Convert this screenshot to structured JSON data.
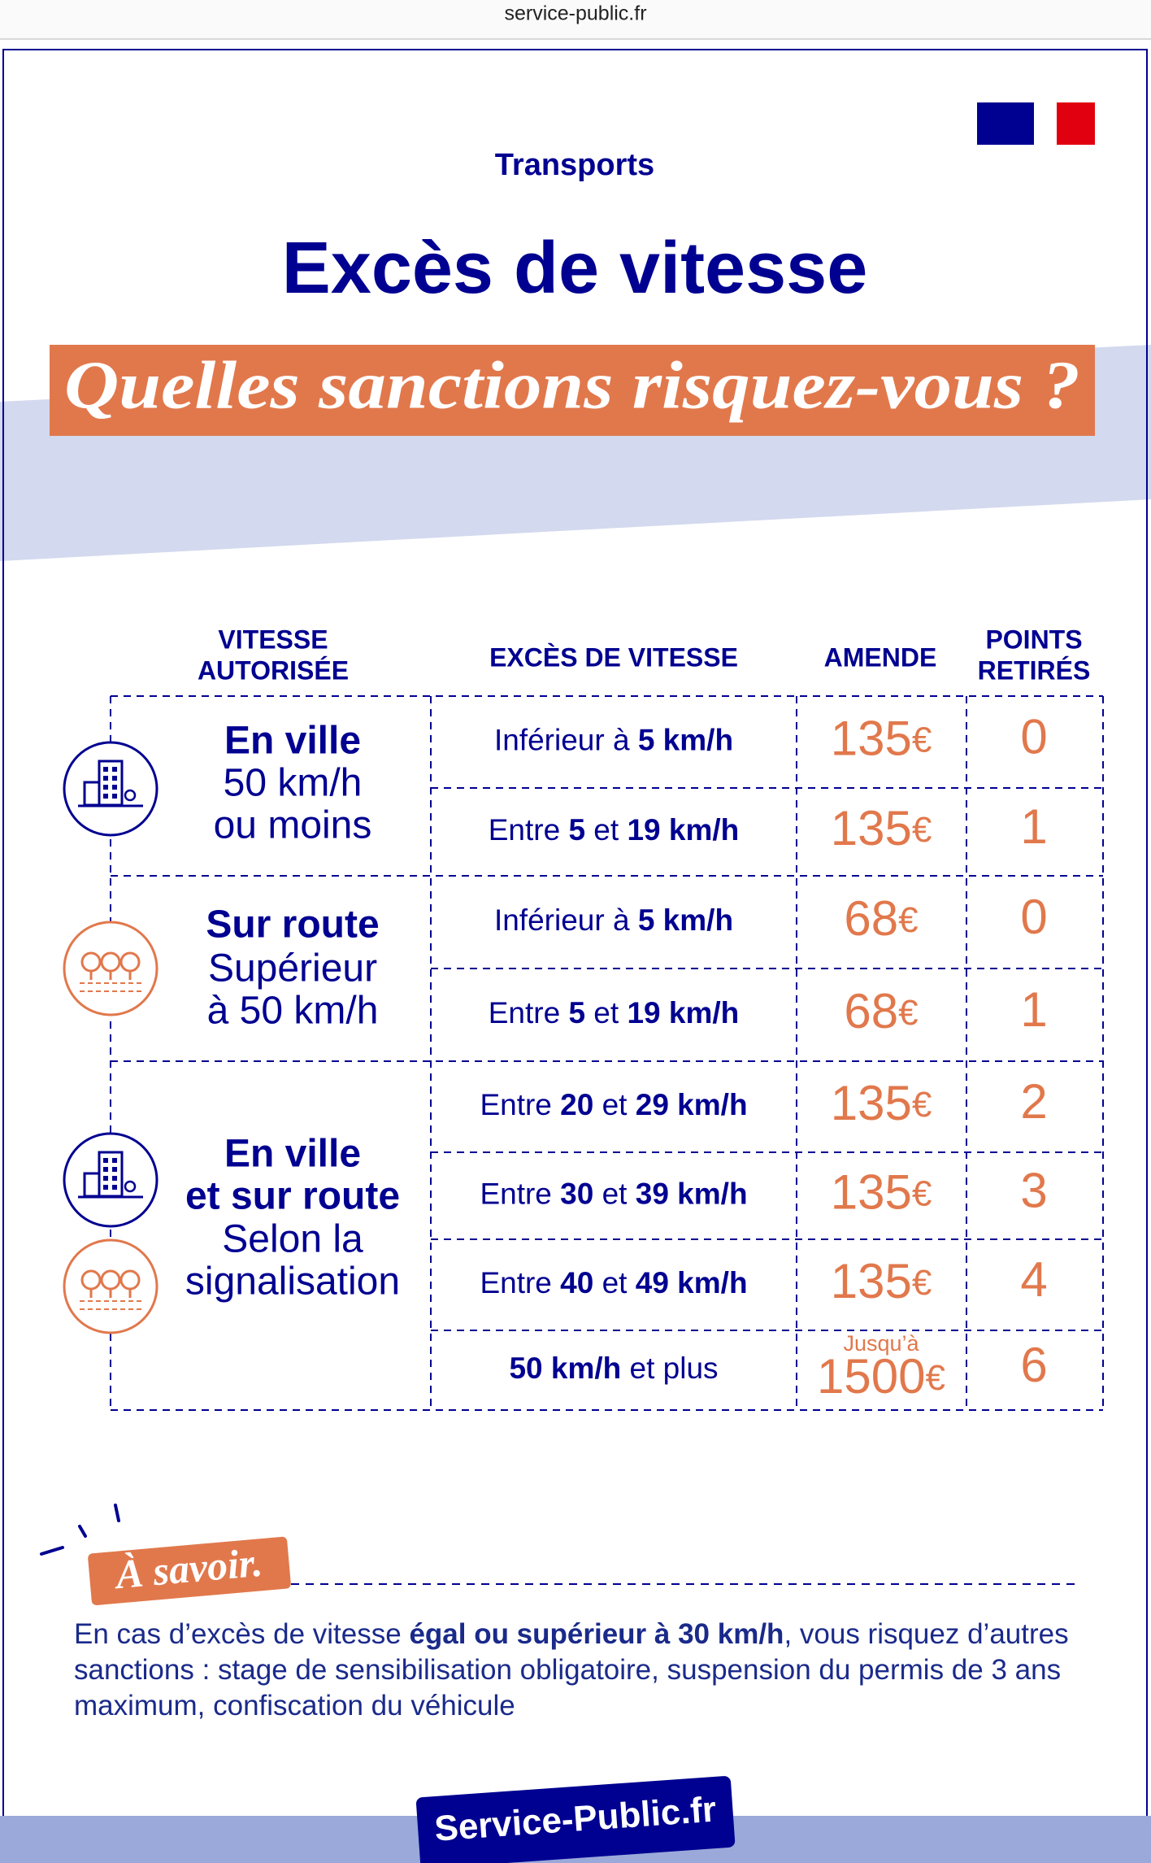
{
  "browser": {
    "url": "service-public.fr"
  },
  "header": {
    "category": "Transports",
    "title": "Excès de vitesse",
    "subtitle": "Quelles sanctions risquez-vous ?"
  },
  "table": {
    "columns": [
      [
        "VITESSE",
        "AUTORISÉE"
      ],
      [
        "EXCÈS DE VITESSE"
      ],
      [
        "AMENDE"
      ],
      [
        "POINTS",
        "RETIRÉS"
      ]
    ],
    "groups": [
      {
        "label": [
          {
            "text": "En ville",
            "bold": true
          },
          {
            "text": "50 km/h",
            "bold": false
          },
          {
            "text": "ou moins",
            "bold": false
          }
        ],
        "rows": [
          {
            "excess": [
              {
                "text": "Inférieur à ",
                "bold": false
              },
              {
                "text": "5 km/h",
                "bold": true
              }
            ],
            "fine": {
              "amount": "135",
              "currency": "€"
            },
            "points": 0
          },
          {
            "excess": [
              {
                "text": "Entre ",
                "bold": false
              },
              {
                "text": "5",
                "bold": true
              },
              {
                "text": " et ",
                "bold": false
              },
              {
                "text": "19 km/h",
                "bold": true
              }
            ],
            "fine": {
              "amount": "135",
              "currency": "€"
            },
            "points": 1
          }
        ]
      },
      {
        "label": [
          {
            "text": "Sur route",
            "bold": true
          },
          {
            "text": "Supérieur",
            "bold": false
          },
          {
            "text": "à 50 km/h",
            "bold": false
          }
        ],
        "rows": [
          {
            "excess": [
              {
                "text": "Inférieur à ",
                "bold": false
              },
              {
                "text": "5 km/h",
                "bold": true
              }
            ],
            "fine": {
              "amount": "68",
              "currency": "€"
            },
            "points": 0
          },
          {
            "excess": [
              {
                "text": "Entre ",
                "bold": false
              },
              {
                "text": "5",
                "bold": true
              },
              {
                "text": " et ",
                "bold": false
              },
              {
                "text": "19 km/h",
                "bold": true
              }
            ],
            "fine": {
              "amount": "68",
              "currency": "€"
            },
            "points": 1
          }
        ]
      },
      {
        "label": [
          {
            "text": "En ville",
            "bold": true
          },
          {
            "text": "et sur route",
            "bold": true
          },
          {
            "text": "Selon la",
            "bold": false
          },
          {
            "text": "signalisation",
            "bold": false
          }
        ],
        "rows": [
          {
            "excess": [
              {
                "text": "Entre ",
                "bold": false
              },
              {
                "text": "20",
                "bold": true
              },
              {
                "text": " et ",
                "bold": false
              },
              {
                "text": "29 km/h",
                "bold": true
              }
            ],
            "fine": {
              "amount": "135",
              "currency": "€"
            },
            "points": 2
          },
          {
            "excess": [
              {
                "text": "Entre ",
                "bold": false
              },
              {
                "text": "30",
                "bold": true
              },
              {
                "text": " et ",
                "bold": false
              },
              {
                "text": "39 km/h",
                "bold": true
              }
            ],
            "fine": {
              "amount": "135",
              "currency": "€"
            },
            "points": 3
          },
          {
            "excess": [
              {
                "text": "Entre ",
                "bold": false
              },
              {
                "text": "40",
                "bold": true
              },
              {
                "text": " et ",
                "bold": false
              },
              {
                "text": "49 km/h",
                "bold": true
              }
            ],
            "fine": {
              "amount": "135",
              "currency": "€"
            },
            "points": 4
          },
          {
            "excess": [
              {
                "text": "50 km/h",
                "bold": true
              },
              {
                "text": " et plus",
                "bold": false
              }
            ],
            "fine": {
              "prefix": "Jusqu’à",
              "amount": "1500",
              "currency": "€"
            },
            "points": 6
          }
        ]
      }
    ]
  },
  "note": {
    "tag": "À savoir.",
    "text": [
      {
        "text": "En cas d’excès de vitesse ",
        "bold": false
      },
      {
        "text": "égal ou supérieur à 30 km/h",
        "bold": true
      },
      {
        "text": ", vous risquez d’autres sanctions : stage de sensibilisation obligatoire, suspension du permis de 3 ans maximum, confiscation du véhicule",
        "bold": false
      }
    ]
  },
  "footer": {
    "logo": "Service-Public.fr"
  }
}
